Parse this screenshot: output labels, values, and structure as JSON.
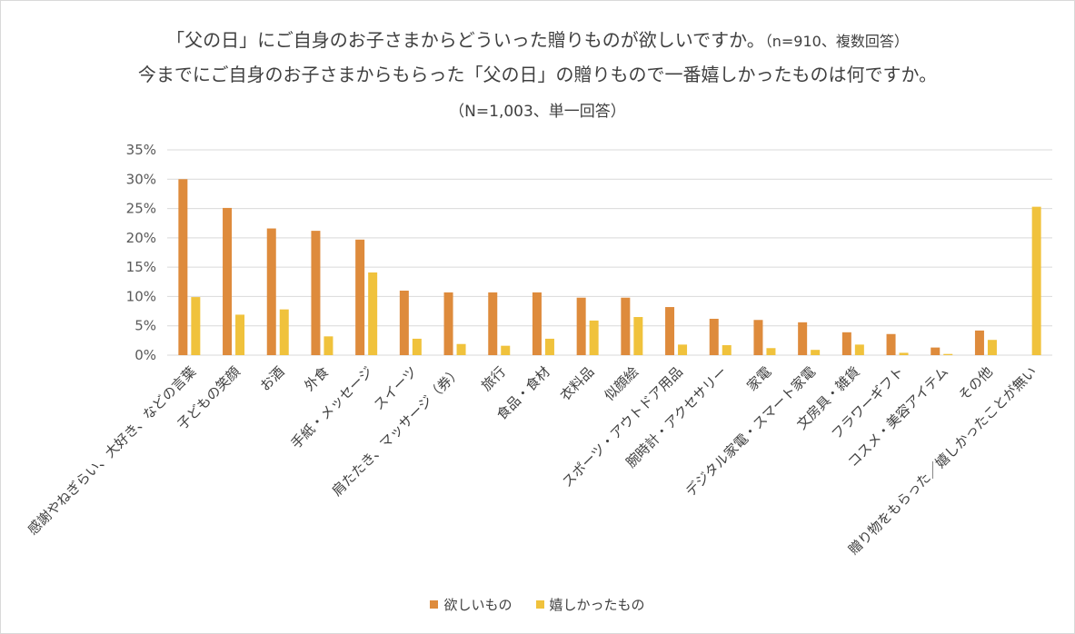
{
  "title_line1": "「父の日」にご自身のお子さまからどういった贈りものが欲しいですか。",
  "title_line1_note": "（n=910、複数回答）",
  "title_line2": "今までにご自身のお子さまからもらった「父の日」の贈りもので一番嬉しかったものは何ですか。",
  "title_line3": "（N=1,003、単一回答）",
  "chart_data": {
    "type": "bar",
    "ylim": [
      0,
      35
    ],
    "yticks": [
      "0%",
      "5%",
      "10%",
      "15%",
      "20%",
      "25%",
      "30%",
      "35%"
    ],
    "grid": true,
    "legend_position": "bottom",
    "categories": [
      "感謝やねぎらい、大好き、などの言葉",
      "子どもの笑顔",
      "お酒",
      "外食",
      "手紙・メッセージ",
      "スイーツ",
      "肩たたき、マッサージ（券）",
      "旅行",
      "食品・食材",
      "衣料品",
      "似顔絵",
      "スポーツ・アウトドア用品",
      "腕時計・アクセサリー",
      "家電",
      "デジタル家電・スマート家電",
      "文房具・雑貨",
      "フラワーギフト",
      "コスメ・美容アイテム",
      "その他",
      "贈り物をもらった／嬉しかったことが無い"
    ],
    "series": [
      {
        "name": "欲しいもの",
        "color": "#DE8B3C",
        "values": [
          30.0,
          25.1,
          21.6,
          21.2,
          19.7,
          11.0,
          10.7,
          10.7,
          10.7,
          9.8,
          9.8,
          8.2,
          6.2,
          6.0,
          5.6,
          3.9,
          3.6,
          1.3,
          4.2,
          null
        ]
      },
      {
        "name": "嬉しかったもの",
        "color": "#F0C23C",
        "values": [
          9.9,
          6.9,
          7.8,
          3.2,
          14.1,
          2.8,
          1.9,
          1.6,
          2.8,
          5.9,
          6.5,
          1.8,
          1.7,
          1.2,
          0.9,
          1.8,
          0.4,
          0.2,
          2.6,
          25.3
        ]
      }
    ]
  }
}
